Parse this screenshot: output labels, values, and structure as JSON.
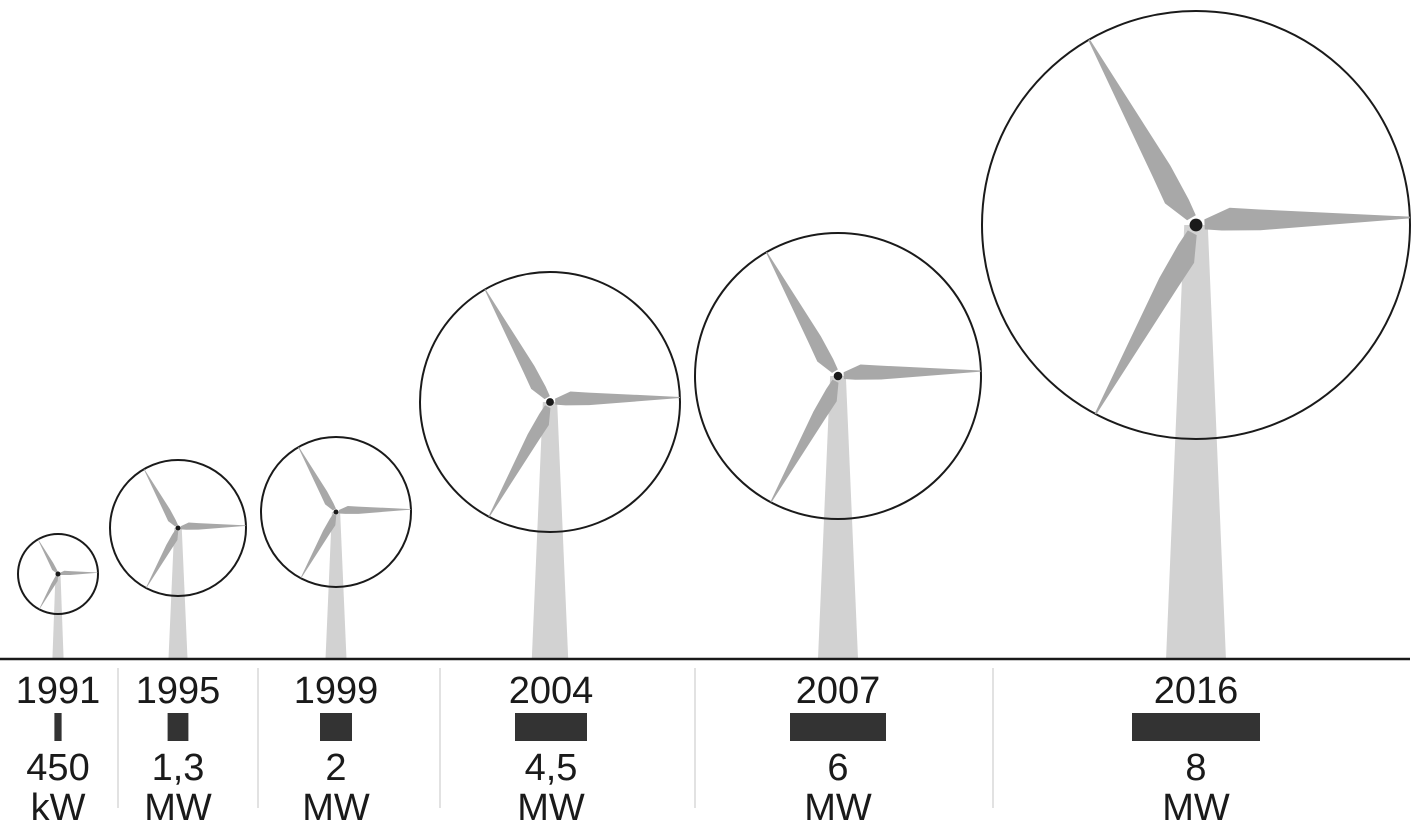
{
  "colors": {
    "blade": "#a8a8a8",
    "tower": "#d2d2d2",
    "circle": "#1a1a1a",
    "hub": "#1a1a1a",
    "power_bar": "#333333",
    "ground": "#1a1a1a",
    "divider": "#d8d8d8"
  },
  "turbines": [
    {
      "year": "1991",
      "power_value": "450",
      "power_unit": "kW",
      "power_mw": 0.45
    },
    {
      "year": "1995",
      "power_value": "1,3",
      "power_unit": "MW",
      "power_mw": 1.3
    },
    {
      "year": "1999",
      "power_value": "2",
      "power_unit": "MW",
      "power_mw": 2
    },
    {
      "year": "2004",
      "power_value": "4,5",
      "power_unit": "MW",
      "power_mw": 4.5
    },
    {
      "year": "2007",
      "power_value": "6",
      "power_unit": "MW",
      "power_mw": 6
    },
    {
      "year": "2016",
      "power_value": "8",
      "power_unit": "MW",
      "power_mw": 8
    }
  ]
}
